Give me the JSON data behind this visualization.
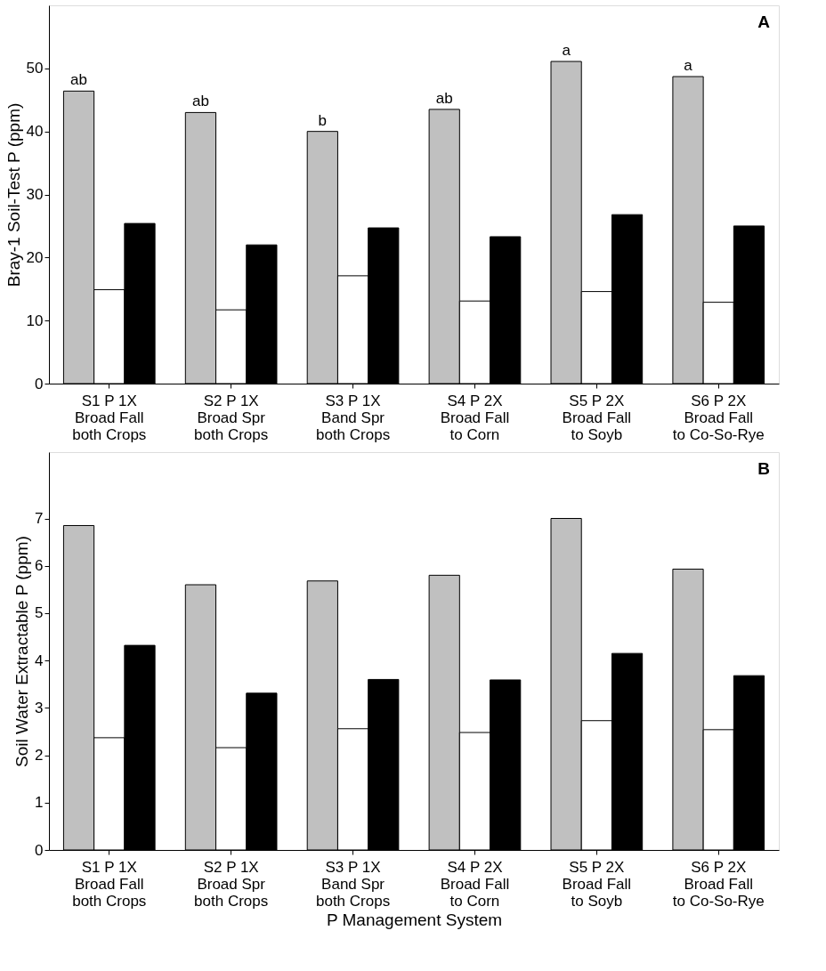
{
  "chart_data": [
    {
      "type": "bar",
      "ylabel": "Bray-1 Soil-Test P (ppm)",
      "categories": [
        "S1 P 1X\nBroad Fall\nboth Crops",
        "S2 P 1X\nBroad Spr\nboth Crops",
        "S3 P 1X\nBand Spr\nboth Crops",
        "S4 P 2X\nBroad Fall\nto Corn",
        "S5 P 2X\nBroad Fall\nto Soyb",
        "S6 P 2X\nBroad Fall\nto Co-So-Rye"
      ],
      "series": [
        {
          "color": "#c0c0c0",
          "values": [
            46.4,
            43.0,
            40.0,
            43.5,
            51.1,
            48.7
          ]
        },
        {
          "color": "#ffffff",
          "values": [
            14.9,
            11.7,
            17.1,
            13.1,
            14.6,
            12.9
          ]
        },
        {
          "color": "#000000",
          "values": [
            25.4,
            22.0,
            24.7,
            23.3,
            26.8,
            25.0
          ]
        }
      ],
      "ylim": [
        0,
        60
      ],
      "yticks": [
        0,
        10,
        20,
        30,
        40,
        50
      ],
      "grid": false,
      "legend": false,
      "annotations": [
        "ab",
        "ab",
        "b",
        "ab",
        "a",
        "a",
        "A"
      ]
    },
    {
      "type": "bar",
      "ylabel": "Soil Water Extractable P (ppm)",
      "xlabel": "P Management System",
      "categories": [
        "S1 P 1X\nBroad Fall\nboth Crops",
        "S2 P 1X\nBroad Spr\nboth Crops",
        "S3 P 1X\nBand Spr\nboth Crops",
        "S4 P 2X\nBroad Fall\nto Corn",
        "S5 P 2X\nBroad Fall\nto Soyb",
        "S6 P 2X\nBroad Fall\nto Co-So-Rye"
      ],
      "series": [
        {
          "color": "#c0c0c0",
          "values": [
            6.85,
            5.6,
            5.68,
            5.8,
            7.0,
            5.93
          ]
        },
        {
          "color": "#ffffff",
          "values": [
            2.37,
            2.16,
            2.56,
            2.48,
            2.73,
            2.54
          ]
        },
        {
          "color": "#000000",
          "values": [
            4.32,
            3.31,
            3.6,
            3.59,
            4.15,
            3.68
          ]
        }
      ],
      "ylim": [
        0,
        8.4
      ],
      "yticks": [
        0,
        1,
        2,
        3,
        4,
        5,
        6,
        7
      ],
      "grid": false,
      "legend": false,
      "annotations": [
        "B"
      ]
    }
  ]
}
